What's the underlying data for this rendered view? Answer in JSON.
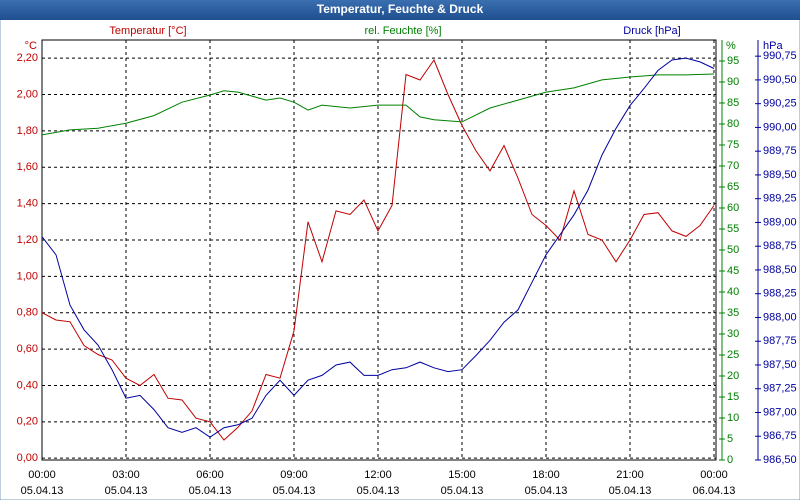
{
  "chart_data": {
    "type": "line",
    "title": "Temperatur, Feuchte & Druck",
    "y_label": "Temperatur [°C]",
    "y_unit": "°C",
    "y2_label": "rel. Feuchte [%]",
    "y2_unit": "%",
    "y3_label": "Druck [hPa]",
    "y3_unit": "hPa",
    "xlim": [
      0,
      24
    ],
    "xticks": [
      {
        "value": 0,
        "label": "00:00"
      },
      {
        "value": 3,
        "label": "03:00"
      },
      {
        "value": 6,
        "label": "06:00"
      },
      {
        "value": 9,
        "label": "09:00"
      },
      {
        "value": 12,
        "label": "12:00"
      },
      {
        "value": 15,
        "label": "15:00"
      },
      {
        "value": 18,
        "label": "18:00"
      },
      {
        "value": 21,
        "label": "21:00"
      },
      {
        "value": 24,
        "label": "00:00"
      }
    ],
    "xtick_dates": [
      "05.04.13",
      "05.04.13",
      "05.04.13",
      "05.04.13",
      "05.04.13",
      "05.04.13",
      "05.04.13",
      "05.04.13",
      "06.04.13"
    ],
    "ylim": [
      -0.01,
      2.3
    ],
    "yticks": [
      {
        "value": 0,
        "label": "0,00"
      },
      {
        "value": 0.2,
        "label": "0,20"
      },
      {
        "value": 0.4,
        "label": "0,40"
      },
      {
        "value": 0.6,
        "label": "0,60"
      },
      {
        "value": 0.8,
        "label": "0,80"
      },
      {
        "value": 1.0,
        "label": "1,00"
      },
      {
        "value": 1.2,
        "label": "1,20"
      },
      {
        "value": 1.4,
        "label": "1,40"
      },
      {
        "value": 1.6,
        "label": "1,60"
      },
      {
        "value": 1.8,
        "label": "1,80"
      },
      {
        "value": 2.0,
        "label": "2,00"
      },
      {
        "value": 2.2,
        "label": "2,20"
      }
    ],
    "y2lim": [
      0,
      100
    ],
    "y2ticks": [
      0,
      5,
      10,
      15,
      20,
      25,
      30,
      35,
      40,
      45,
      50,
      55,
      60,
      65,
      70,
      75,
      80,
      85,
      90,
      95
    ],
    "y3lim": [
      986.5,
      990.92
    ],
    "y3ticks": [
      {
        "value": 986.5,
        "label": "986,50"
      },
      {
        "value": 986.75,
        "label": "986,75"
      },
      {
        "value": 987.0,
        "label": "987,00"
      },
      {
        "value": 987.25,
        "label": "987,25"
      },
      {
        "value": 987.5,
        "label": "987,50"
      },
      {
        "value": 987.75,
        "label": "987,75"
      },
      {
        "value": 988.0,
        "label": "988,00"
      },
      {
        "value": 988.25,
        "label": "988,25"
      },
      {
        "value": 988.5,
        "label": "988,50"
      },
      {
        "value": 988.75,
        "label": "988,75"
      },
      {
        "value": 989.0,
        "label": "989,00"
      },
      {
        "value": 989.25,
        "label": "989,25"
      },
      {
        "value": 989.5,
        "label": "989,50"
      },
      {
        "value": 989.75,
        "label": "989,75"
      },
      {
        "value": 990.0,
        "label": "990,00"
      },
      {
        "value": 990.25,
        "label": "990,25"
      },
      {
        "value": 990.5,
        "label": "990,50"
      },
      {
        "value": 990.75,
        "label": "990,75"
      }
    ],
    "grid": true,
    "series": [
      {
        "name": "Temperatur",
        "color": "#c00000",
        "axis": "y",
        "x": [
          0,
          0.5,
          1,
          1.5,
          2,
          2.5,
          3,
          3.5,
          4,
          4.5,
          5,
          5.5,
          6,
          6.5,
          7,
          7.5,
          8,
          8.5,
          9,
          9.5,
          10,
          10.5,
          11,
          11.5,
          12,
          12.5,
          13,
          13.5,
          14,
          14.5,
          15,
          15.5,
          16,
          16.5,
          17,
          17.5,
          18,
          18.5,
          19,
          19.5,
          20,
          20.5,
          21,
          21.5,
          22,
          22.5,
          23,
          23.5,
          24
        ],
        "values": [
          0.8,
          0.76,
          0.75,
          0.62,
          0.57,
          0.54,
          0.44,
          0.4,
          0.46,
          0.33,
          0.32,
          0.22,
          0.2,
          0.1,
          0.17,
          0.26,
          0.46,
          0.44,
          0.7,
          1.3,
          1.08,
          1.36,
          1.34,
          1.42,
          1.25,
          1.39,
          2.11,
          2.08,
          2.19,
          2.0,
          1.83,
          1.69,
          1.58,
          1.72,
          1.54,
          1.34,
          1.28,
          1.2,
          1.47,
          1.23,
          1.2,
          1.08,
          1.2,
          1.34,
          1.35,
          1.25,
          1.22,
          1.28,
          1.39
        ]
      },
      {
        "name": "rel. Feuchte",
        "color": "#008000",
        "axis": "y2",
        "x": [
          0,
          1,
          2,
          3,
          4,
          5,
          6,
          6.5,
          7,
          8,
          8.5,
          9,
          9.5,
          10,
          11,
          12,
          13,
          13.5,
          14,
          15,
          16,
          17,
          18,
          19,
          20,
          21,
          22,
          23,
          24
        ],
        "values": [
          77.4,
          78.6,
          79,
          80.2,
          82,
          85.2,
          86.9,
          87.9,
          87.6,
          85.7,
          86.2,
          85.2,
          83.3,
          84.5,
          83.8,
          84.5,
          84.5,
          81.7,
          81,
          80.5,
          83.8,
          85.7,
          87.6,
          88.6,
          90.5,
          91.2,
          91.7,
          91.7,
          91.9
        ]
      },
      {
        "name": "Druck",
        "color": "#0000a0",
        "axis": "y3",
        "x": [
          0,
          0.5,
          1,
          1.5,
          2,
          2.5,
          3,
          3.5,
          4,
          4.5,
          5,
          5.5,
          6,
          6.5,
          7,
          7.5,
          8,
          8.5,
          9,
          9.5,
          10,
          10.5,
          11,
          11.5,
          12,
          12.5,
          13,
          13.5,
          14,
          14.5,
          15,
          15.5,
          16,
          16.5,
          17,
          17.5,
          18,
          18.5,
          19,
          19.5,
          20,
          20.5,
          21,
          21.5,
          22,
          22.5,
          23,
          23.5,
          24
        ],
        "values": [
          988.85,
          988.66,
          988.13,
          987.87,
          987.71,
          987.45,
          987.15,
          987.18,
          987.03,
          986.84,
          986.79,
          986.84,
          986.74,
          986.84,
          986.87,
          986.94,
          987.18,
          987.34,
          987.18,
          987.34,
          987.39,
          987.5,
          987.53,
          987.39,
          987.39,
          987.45,
          987.47,
          987.53,
          987.47,
          987.43,
          987.45,
          987.6,
          987.76,
          987.95,
          988.08,
          988.37,
          988.66,
          988.87,
          989.08,
          989.34,
          989.71,
          989.99,
          990.23,
          990.41,
          990.6,
          990.71,
          990.73,
          990.69,
          990.62
        ]
      }
    ]
  }
}
